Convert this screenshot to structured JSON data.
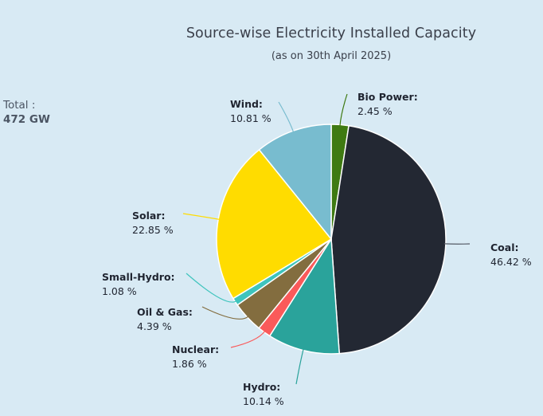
{
  "header": {
    "title": "Source-wise Electricity Installed Capacity",
    "subtitle": "(as on 30th April 2025)"
  },
  "total": {
    "label": "Total :",
    "value": "472 GW"
  },
  "labels": [
    {
      "name": "Bio Power:",
      "value": "2.45 %"
    },
    {
      "name": "Coal:",
      "value": "46.42 %"
    },
    {
      "name": "Hydro:",
      "value": "10.14 %"
    },
    {
      "name": "Nuclear:",
      "value": "1.86 %"
    },
    {
      "name": "Oil & Gas:",
      "value": "4.39 %"
    },
    {
      "name": "Small-Hydro:",
      "value": "1.08 %"
    },
    {
      "name": "Solar:",
      "value": "22.85 %"
    },
    {
      "name": "Wind:",
      "value": "10.81 %"
    }
  ],
  "chart_data": {
    "type": "pie",
    "title": "Source-wise Electricity Installed Capacity",
    "subtitle": "(as on 30th April 2025)",
    "total": "472 GW",
    "categories": [
      "Bio Power",
      "Coal",
      "Hydro",
      "Nuclear",
      "Oil & Gas",
      "Small-Hydro",
      "Solar",
      "Wind"
    ],
    "values": [
      2.45,
      46.42,
      10.14,
      1.86,
      4.39,
      1.08,
      22.85,
      10.81
    ],
    "unit": "%",
    "colors": [
      "#3f7a12",
      "#232833",
      "#2aa39b",
      "#fa5a5a",
      "#836d3f",
      "#3ec4bd",
      "#ffdc00",
      "#78bccf"
    ],
    "start_angle": "12 o'clock, clockwise",
    "legend": "none (leader-line labels)"
  }
}
